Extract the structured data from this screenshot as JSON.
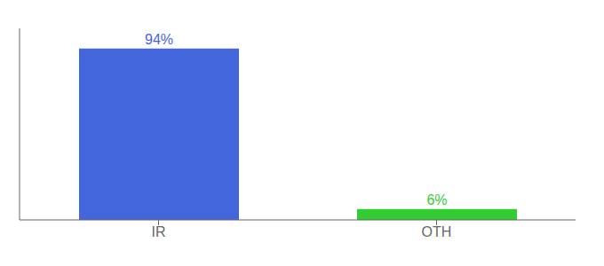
{
  "chart_data": {
    "type": "bar",
    "categories": [
      "IR",
      "OTH"
    ],
    "values": [
      94,
      6
    ],
    "value_labels": [
      "94%",
      "6%"
    ],
    "colors": [
      "#4466dd",
      "#33cc33"
    ],
    "ylim": [
      0,
      105
    ],
    "data_labels": true,
    "tick_labels": "x",
    "grid": false
  }
}
